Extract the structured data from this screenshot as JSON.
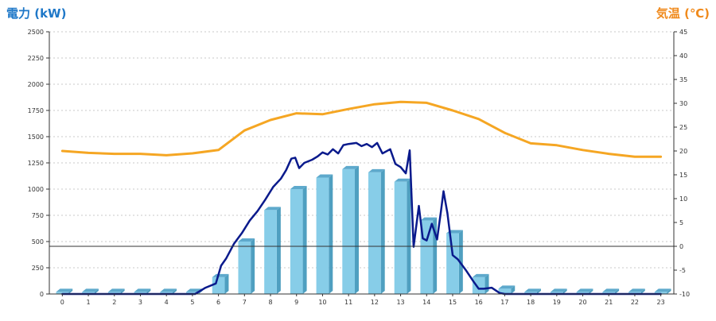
{
  "chart_data": {
    "type": "bar",
    "ylabel_left": "電力 (kW)",
    "ylabel_right": "気温 (℃)",
    "categories": [
      "0",
      "1",
      "2",
      "3",
      "4",
      "5",
      "6",
      "7",
      "8",
      "9",
      "10",
      "11",
      "12",
      "13",
      "14",
      "15",
      "16",
      "17",
      "18",
      "19",
      "20",
      "21",
      "22",
      "23"
    ],
    "yticks_left": [
      "0",
      "250",
      "500",
      "750",
      "1000",
      "1250",
      "1500",
      "1750",
      "2000",
      "2250",
      "2500"
    ],
    "yticks_right": [
      "-10",
      "-5",
      "0",
      "5",
      "10",
      "15",
      "20",
      "25",
      "30",
      "35",
      "40",
      "45"
    ],
    "ylim_left": [
      0,
      2500
    ],
    "ylim_right": [
      -10,
      45
    ],
    "grid": true,
    "colors": {
      "bar": "#87cde8",
      "bar_side": "#4f9fc0",
      "bar_top": "#5ea9cc",
      "power_line": "#0a1a8c",
      "temperature_line": "#f5a623",
      "zero_line": "#333333",
      "left_label": "#1f78c8",
      "right_label": "#f08a1c"
    },
    "series": [
      {
        "type": "bar",
        "axis": "left",
        "values": [
          20,
          20,
          20,
          20,
          20,
          20,
          160,
          500,
          800,
          1000,
          1110,
          1190,
          1160,
          1070,
          700,
          580,
          160,
          50,
          20,
          20,
          20,
          20,
          20,
          20
        ]
      },
      {
        "type": "line",
        "axis": "left",
        "x": [
          0,
          1,
          2,
          3,
          4,
          5,
          5.1,
          5.5,
          5.9,
          6.1,
          6.3,
          6.6,
          6.9,
          7.2,
          7.5,
          7.8,
          8.1,
          8.4,
          8.6,
          8.8,
          8.95,
          9.1,
          9.3,
          9.6,
          9.8,
          10.0,
          10.2,
          10.4,
          10.6,
          10.8,
          11.0,
          11.3,
          11.5,
          11.7,
          11.9,
          12.1,
          12.3,
          12.6,
          12.8,
          13.0,
          13.2,
          13.35,
          13.5,
          13.7,
          13.85,
          14.0,
          14.2,
          14.4,
          14.55,
          14.65,
          14.8,
          15.0,
          15.2,
          15.5,
          15.8,
          16.0,
          16.2,
          16.5,
          16.8,
          17.0,
          17.2,
          18,
          19,
          20,
          21,
          22,
          23
        ],
        "y": [
          0,
          0,
          0,
          0,
          0,
          0,
          0,
          60,
          100,
          270,
          340,
          480,
          580,
          700,
          790,
          900,
          1020,
          1100,
          1180,
          1290,
          1300,
          1200,
          1250,
          1280,
          1310,
          1350,
          1330,
          1380,
          1340,
          1420,
          1430,
          1440,
          1410,
          1430,
          1400,
          1440,
          1340,
          1380,
          1240,
          1210,
          1150,
          1370,
          450,
          840,
          530,
          510,
          670,
          520,
          790,
          980,
          770,
          370,
          330,
          230,
          120,
          50,
          50,
          60,
          10,
          0,
          0,
          0,
          0,
          0,
          0,
          0,
          0
        ]
      },
      {
        "type": "line",
        "axis": "right",
        "x": [
          0,
          1,
          2,
          3,
          4,
          5,
          6,
          7,
          8,
          9,
          10,
          11,
          12,
          13,
          14,
          15,
          16,
          17,
          18,
          19,
          20,
          21,
          22,
          23
        ],
        "y": [
          20,
          19.6,
          19.4,
          19.4,
          19.1,
          19.5,
          20.2,
          24.3,
          26.5,
          27.9,
          27.7,
          28.8,
          29.8,
          30.3,
          30.1,
          28.5,
          26.7,
          23.8,
          21.6,
          21.2,
          20.2,
          19.4,
          18.8,
          18.8
        ]
      }
    ]
  }
}
